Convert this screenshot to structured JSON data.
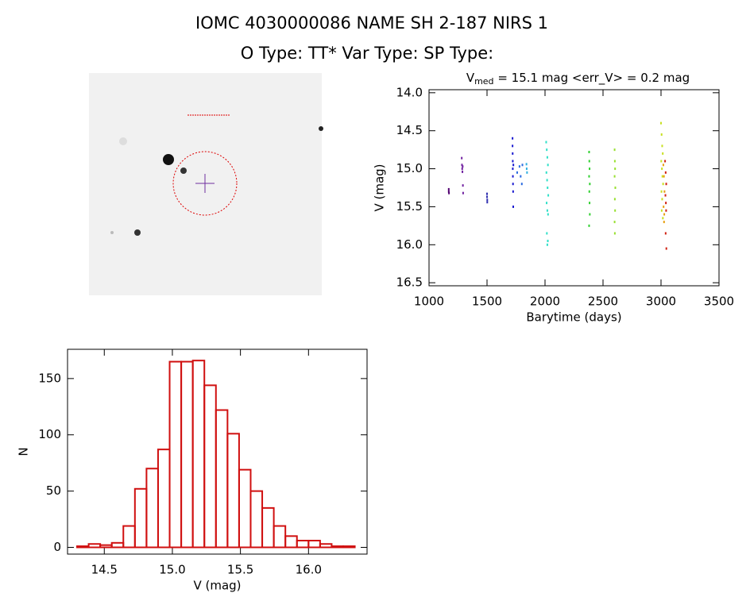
{
  "header": {
    "title": "IOMC 4030000086   NAME SH 2-187 NIRS 1",
    "subtitle": "O Type: TT*  Var Type:   SP Type:"
  },
  "chart_data": [
    {
      "type": "scatter",
      "title_parts": [
        "V",
        "med",
        " = 15.1 mag <err_V> = 0.2 mag"
      ],
      "xlabel": "Barytime (days)",
      "ylabel": "V (mag)",
      "xlim": [
        1000,
        3500
      ],
      "xticks": [
        1000,
        1500,
        2000,
        2500,
        3000,
        3500
      ],
      "ylim": [
        16.54,
        13.96
      ],
      "yticks": [
        {
          "value": 14,
          "label": "14.0"
        },
        14.5,
        {
          "value": 15,
          "label": "15.0"
        },
        15.5,
        {
          "value": 16,
          "label": "16.0"
        },
        16.5
      ],
      "series": [
        {
          "color": "#500070",
          "x": [
            1170,
            1170,
            1172
          ],
          "values": [
            15.27,
            15.3,
            15.32
          ]
        },
        {
          "color": "#7020a0",
          "x": [
            1282,
            1284,
            1286,
            1288,
            1290,
            1292,
            1294
          ],
          "values": [
            14.86,
            14.95,
            15.0,
            15.04,
            14.97,
            15.22,
            15.32
          ]
        },
        {
          "color": "#3030b0",
          "x": [
            1500,
            1500,
            1502,
            1502
          ],
          "values": [
            15.33,
            15.37,
            15.41,
            15.44
          ]
        },
        {
          "color": "#1a1ad0",
          "x": [
            1720,
            1720,
            1721,
            1722,
            1722,
            1723,
            1724,
            1725,
            1726,
            1727
          ],
          "values": [
            14.6,
            14.7,
            14.8,
            14.9,
            15.0,
            15.1,
            15.2,
            15.3,
            15.5,
            14.95
          ]
        },
        {
          "color": "#2a6ae0",
          "x": [
            1760,
            1780,
            1790,
            1800,
            1805
          ],
          "values": [
            15.05,
            14.97,
            15.1,
            15.2,
            14.95
          ]
        },
        {
          "color": "#30b0e0",
          "x": [
            1840,
            1842,
            1845
          ],
          "values": [
            14.94,
            15.0,
            15.05
          ]
        },
        {
          "color": "#30e0c8",
          "x": [
            2010,
            2015,
            2020,
            2025,
            2012,
            2018,
            2022,
            2028,
            2014,
            2020,
            2026,
            2016,
            2024,
            2020
          ],
          "values": [
            14.65,
            14.75,
            14.85,
            14.95,
            15.05,
            15.15,
            15.25,
            15.35,
            15.45,
            15.55,
            15.6,
            15.85,
            15.95,
            16.0
          ]
        },
        {
          "color": "#30d030",
          "x": [
            2380,
            2382,
            2384,
            2380,
            2386,
            2382,
            2384,
            2386,
            2380
          ],
          "values": [
            14.78,
            14.9,
            15.0,
            15.1,
            15.2,
            15.3,
            15.45,
            15.6,
            15.75
          ]
        },
        {
          "color": "#98e030",
          "x": [
            2600,
            2602,
            2604,
            2600,
            2606,
            2602,
            2604,
            2600,
            2602
          ],
          "values": [
            14.75,
            14.9,
            15.0,
            15.1,
            15.25,
            15.4,
            15.55,
            15.7,
            15.85
          ]
        },
        {
          "color": "#c8e020",
          "x": [
            3000,
            3005,
            3010,
            3015,
            3002,
            3008,
            3012,
            3018,
            3004,
            3010,
            3006,
            3016
          ],
          "values": [
            14.4,
            14.55,
            14.7,
            14.8,
            14.9,
            15.0,
            15.1,
            15.2,
            15.3,
            15.4,
            15.55,
            15.65
          ]
        },
        {
          "color": "#e8a010",
          "x": [
            3020,
            3025,
            3030,
            3022,
            3028,
            3026
          ],
          "values": [
            14.95,
            15.1,
            15.3,
            15.5,
            15.6,
            15.7
          ]
        },
        {
          "color": "#d02010",
          "x": [
            3035,
            3040,
            3045,
            3038,
            3042,
            3044,
            3040,
            3046
          ],
          "values": [
            14.9,
            15.05,
            15.2,
            15.35,
            15.45,
            15.55,
            15.85,
            16.05
          ]
        }
      ]
    },
    {
      "type": "histogram",
      "xlabel": "V (mag)",
      "ylabel": "N",
      "color": "#d01010",
      "xlim": [
        14.23,
        16.43
      ],
      "xticks": [
        14.5,
        {
          "value": 15,
          "label": "15.0"
        },
        15.5,
        {
          "value": 16,
          "label": "16.0"
        }
      ],
      "ylim": [
        -6,
        176
      ],
      "yticks": [
        0,
        50,
        100,
        150
      ],
      "bins": [
        14.3,
        14.385,
        14.47,
        14.555,
        14.64,
        14.725,
        14.81,
        14.895,
        14.98,
        15.065,
        15.15,
        15.235,
        15.32,
        15.405,
        15.49,
        15.575,
        15.66,
        15.745,
        15.83,
        15.915,
        16.0,
        16.085,
        16.17,
        16.255,
        16.34
      ],
      "values": [
        1,
        3,
        2,
        4,
        19,
        52,
        70,
        87,
        165,
        165,
        166,
        144,
        122,
        101,
        69,
        50,
        35,
        19,
        10,
        6,
        6,
        3,
        1,
        1
      ]
    }
  ]
}
